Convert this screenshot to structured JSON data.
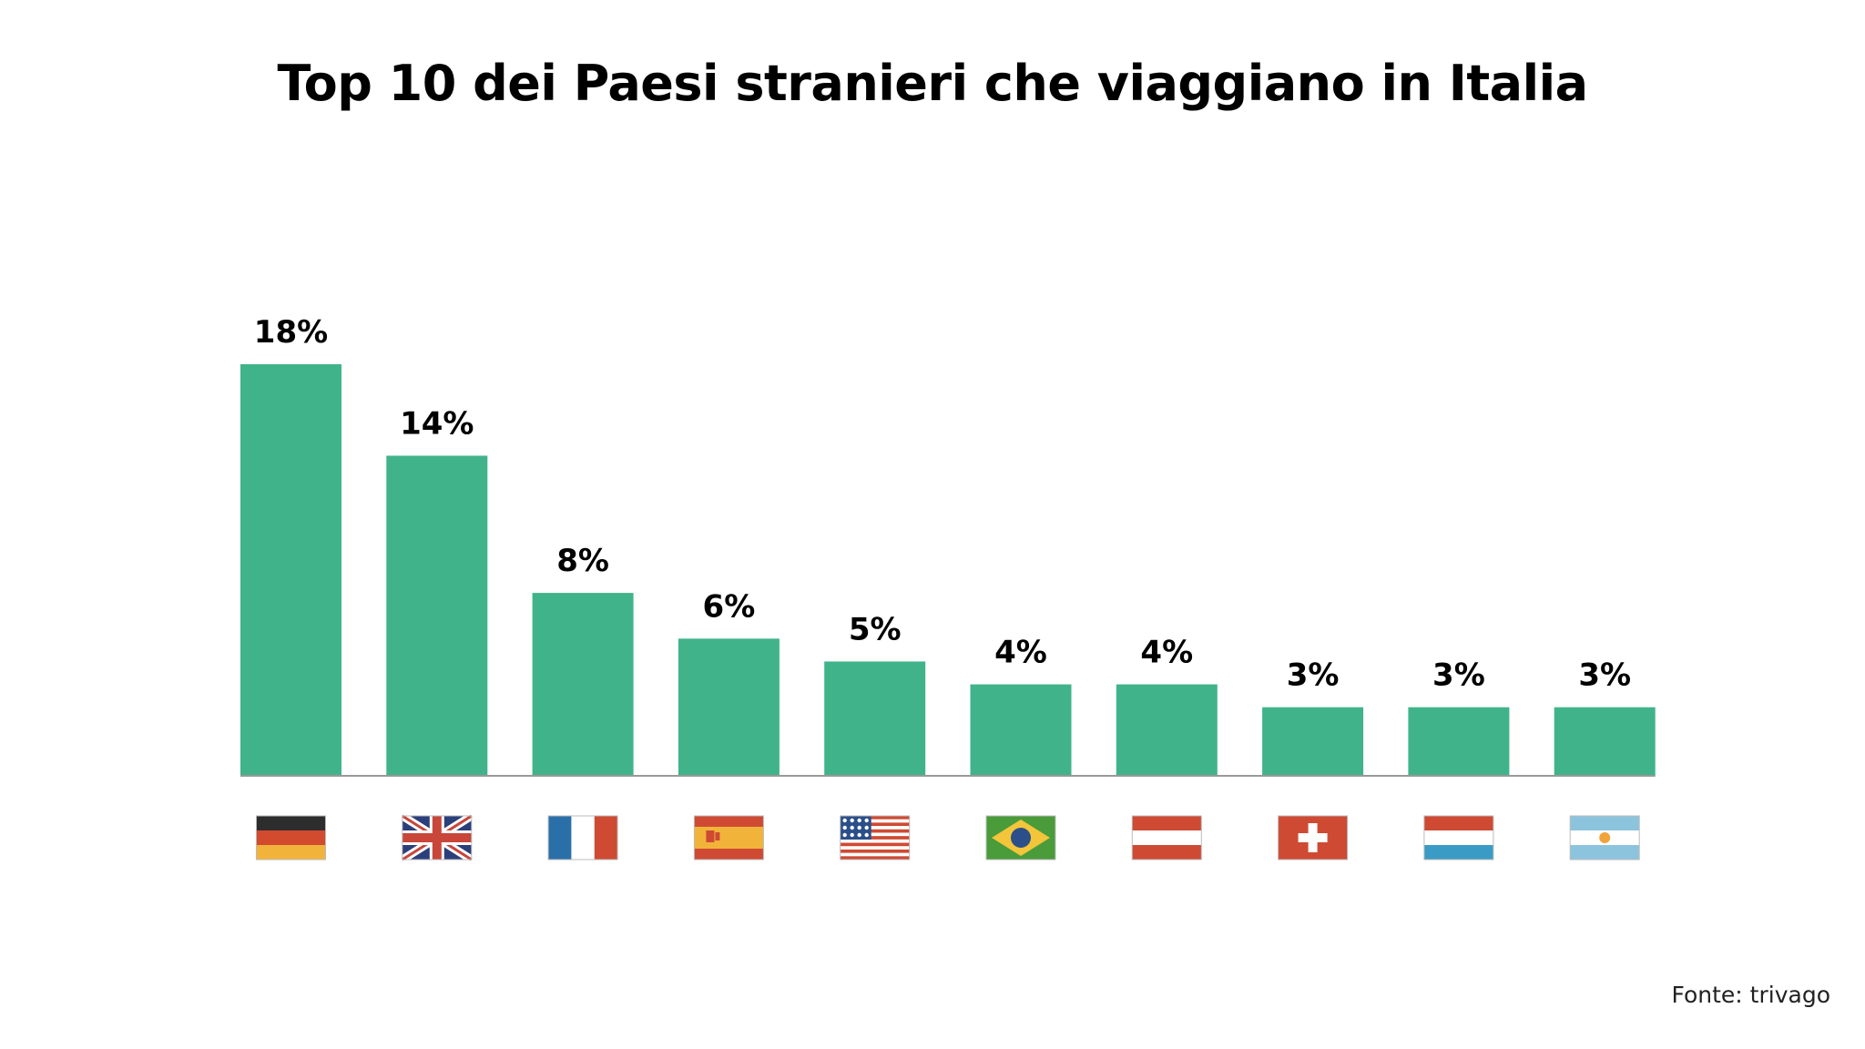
{
  "chart_data": {
    "type": "bar",
    "title": "Top 10 dei Paesi stranieri che viaggiano in Italia",
    "categories": [
      "Germany",
      "United Kingdom",
      "France",
      "Spain",
      "United States",
      "Brazil",
      "Austria",
      "Switzerland",
      "Netherlands",
      "Argentina"
    ],
    "values": [
      18,
      14,
      8,
      6,
      5,
      4,
      4,
      3,
      3,
      3
    ],
    "value_labels": [
      "18%",
      "14%",
      "8%",
      "6%",
      "5%",
      "4%",
      "4%",
      "3%",
      "3%",
      "3%"
    ],
    "flag_icons": [
      "germany-flag-icon",
      "uk-flag-icon",
      "france-flag-icon",
      "spain-flag-icon",
      "usa-flag-icon",
      "brazil-flag-icon",
      "austria-flag-icon",
      "switzerland-flag-icon",
      "netherlands-flag-icon",
      "argentina-flag-icon"
    ],
    "xlabel": "",
    "ylabel": "",
    "ylim": [
      0,
      18
    ],
    "grid": false,
    "bar_color": "#41b38b"
  },
  "source": "Fonte: trivago"
}
